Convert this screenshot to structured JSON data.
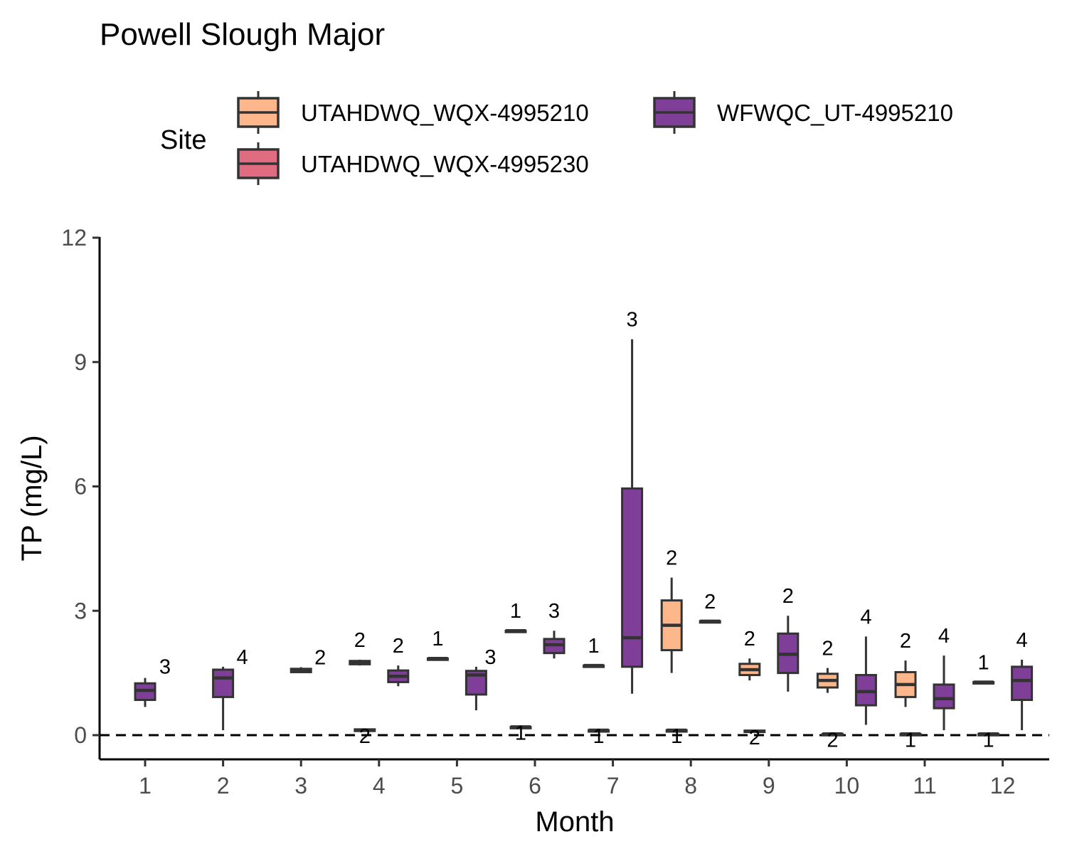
{
  "chart_data": {
    "type": "box",
    "title": "Powell Slough Major",
    "xlabel": "Month",
    "ylabel": "TP (mg/L)",
    "ylim": [
      -0.6,
      12.5
    ],
    "yticks": [
      "0",
      "3",
      "6",
      "9",
      "12"
    ],
    "categories": [
      "1",
      "2",
      "3",
      "4",
      "5",
      "6",
      "7",
      "8",
      "9",
      "10",
      "11",
      "12"
    ],
    "reference_line": {
      "y": 0,
      "style": "dashed"
    },
    "grid": false,
    "legend": {
      "title": "Site",
      "placement": "top",
      "entries": [
        {
          "name": "UTAHDWQ_WQX-4995210",
          "color": "#FEB78B"
        },
        {
          "name": "WFWQC_UT-4995210",
          "color": "#7F3F98"
        },
        {
          "name": "UTAHDWQ_WQX-4995230",
          "color": "#E06C81"
        }
      ]
    },
    "series": [
      {
        "name": "UTAHDWQ_WQX-4995210",
        "color": "#FEB78B",
        "boxes": [
          {
            "month": "4",
            "min": 1.68,
            "q1": 1.71,
            "median": 1.75,
            "q3": 1.79,
            "max": 1.82,
            "n": "2"
          },
          {
            "month": "5",
            "min": 1.85,
            "q1": 1.85,
            "median": 1.85,
            "q3": 1.85,
            "max": 1.85,
            "n": "1"
          },
          {
            "month": "6",
            "min": 2.52,
            "q1": 2.52,
            "median": 2.52,
            "q3": 2.52,
            "max": 2.52,
            "n": "1"
          },
          {
            "month": "7",
            "min": 1.68,
            "q1": 1.68,
            "median": 1.68,
            "q3": 1.68,
            "max": 1.68,
            "n": "1"
          },
          {
            "month": "8",
            "min": 1.5,
            "q1": 2.05,
            "median": 2.65,
            "q3": 3.25,
            "max": 3.8,
            "n": "2"
          },
          {
            "month": "9",
            "min": 1.32,
            "q1": 1.45,
            "median": 1.58,
            "q3": 1.72,
            "max": 1.85,
            "n": "2"
          },
          {
            "month": "10",
            "min": 1.02,
            "q1": 1.15,
            "median": 1.32,
            "q3": 1.48,
            "max": 1.62,
            "n": "2"
          },
          {
            "month": "11",
            "min": 0.68,
            "q1": 0.92,
            "median": 1.22,
            "q3": 1.52,
            "max": 1.8,
            "n": "2"
          },
          {
            "month": "12",
            "min": 1.28,
            "q1": 1.28,
            "median": 1.28,
            "q3": 1.28,
            "max": 1.28,
            "n": "1"
          }
        ]
      },
      {
        "name": "WFWQC_UT-4995210",
        "color": "#7F3F98",
        "boxes": [
          {
            "month": "1",
            "min": 0.68,
            "q1": 0.85,
            "median": 1.08,
            "q3": 1.25,
            "max": 1.38,
            "n": "3"
          },
          {
            "month": "2",
            "min": 0.12,
            "q1": 0.92,
            "median": 1.38,
            "q3": 1.58,
            "max": 1.65,
            "n": "4"
          },
          {
            "month": "3",
            "min": 1.5,
            "q1": 1.52,
            "median": 1.56,
            "q3": 1.6,
            "max": 1.64,
            "n": "2"
          },
          {
            "month": "4",
            "min": 1.18,
            "q1": 1.28,
            "median": 1.42,
            "q3": 1.56,
            "max": 1.68,
            "n": "2"
          },
          {
            "month": "5",
            "min": 0.6,
            "q1": 0.98,
            "median": 1.45,
            "q3": 1.55,
            "max": 1.65,
            "n": "3"
          },
          {
            "month": "6",
            "min": 1.85,
            "q1": 1.98,
            "median": 2.18,
            "q3": 2.32,
            "max": 2.52,
            "n": "3"
          },
          {
            "month": "7",
            "min": 1.0,
            "q1": 1.65,
            "median": 2.35,
            "q3": 5.95,
            "max": 9.55,
            "n": "3"
          },
          {
            "month": "8",
            "min": 2.75,
            "q1": 2.75,
            "median": 2.75,
            "q3": 2.75,
            "max": 2.75,
            "n": "2"
          },
          {
            "month": "9",
            "min": 1.05,
            "q1": 1.5,
            "median": 1.95,
            "q3": 2.45,
            "max": 2.88,
            "n": "2"
          },
          {
            "month": "10",
            "min": 0.25,
            "q1": 0.72,
            "median": 1.05,
            "q3": 1.45,
            "max": 2.38,
            "n": "4"
          },
          {
            "month": "11",
            "min": 0.12,
            "q1": 0.65,
            "median": 0.88,
            "q3": 1.22,
            "max": 1.92,
            "n": "4"
          },
          {
            "month": "12",
            "min": 0.12,
            "q1": 0.85,
            "median": 1.32,
            "q3": 1.65,
            "max": 1.82,
            "n": "4"
          }
        ]
      },
      {
        "name": "UTAHDWQ_WQX-4995230",
        "color": "#E06C81",
        "boxes": [
          {
            "month": "4",
            "min": 0.09,
            "q1": 0.1,
            "median": 0.12,
            "q3": 0.14,
            "max": 0.15,
            "n": "2"
          },
          {
            "month": "6",
            "min": 0.2,
            "q1": 0.2,
            "median": 0.2,
            "q3": 0.2,
            "max": 0.2,
            "n": "1"
          },
          {
            "month": "7",
            "min": 0.12,
            "q1": 0.12,
            "median": 0.12,
            "q3": 0.12,
            "max": 0.12,
            "n": "1"
          },
          {
            "month": "8",
            "min": 0.12,
            "q1": 0.12,
            "median": 0.12,
            "q3": 0.12,
            "max": 0.12,
            "n": "1"
          },
          {
            "month": "9",
            "min": 0.07,
            "q1": 0.08,
            "median": 0.09,
            "q3": 0.11,
            "max": 0.12,
            "n": "2"
          },
          {
            "month": "10",
            "min": 0.02,
            "q1": 0.02,
            "median": 0.03,
            "q3": 0.03,
            "max": 0.04,
            "n": "2"
          },
          {
            "month": "11",
            "min": 0.03,
            "q1": 0.03,
            "median": 0.03,
            "q3": 0.03,
            "max": 0.03,
            "n": "1"
          },
          {
            "month": "12",
            "min": 0.03,
            "q1": 0.03,
            "median": 0.03,
            "q3": 0.03,
            "max": 0.03,
            "n": "1"
          }
        ]
      }
    ]
  }
}
